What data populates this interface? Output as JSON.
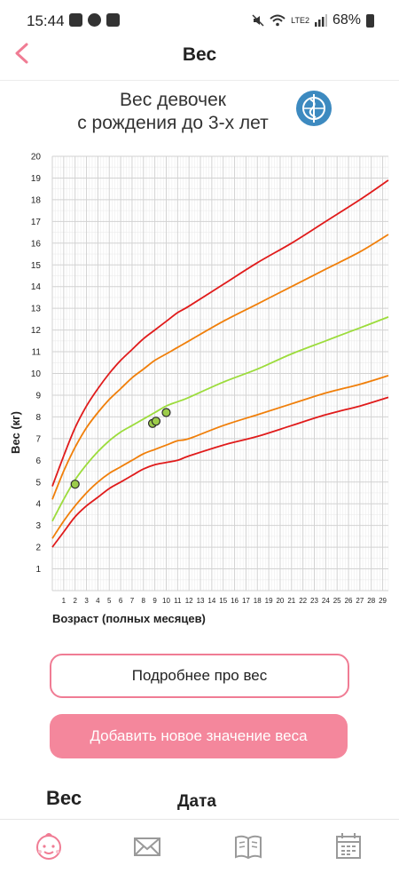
{
  "status_bar": {
    "time": "15:44",
    "network": "LTE2",
    "battery": "68%"
  },
  "header": {
    "title": "Вес"
  },
  "chart_data": {
    "type": "line",
    "title": "Вес девочек\nс рождения до 3-х лет",
    "xlabel": "Возраст (полных месяцев)",
    "ylabel": "Вес (кг)",
    "xlim": [
      0,
      29.5
    ],
    "ylim": [
      0,
      20
    ],
    "x_ticks": [
      1,
      2,
      3,
      4,
      5,
      6,
      7,
      8,
      9,
      10,
      11,
      12,
      13,
      14,
      15,
      16,
      17,
      18,
      19,
      20,
      21,
      22,
      23,
      24,
      25,
      26,
      27,
      28,
      29
    ],
    "y_ticks": [
      1,
      2,
      3,
      4,
      5,
      6,
      7,
      8,
      9,
      10,
      11,
      12,
      13,
      14,
      15,
      16,
      17,
      18,
      19,
      20
    ],
    "grid": true,
    "series": [
      {
        "color": "#e01b1b",
        "x": [
          0,
          1,
          2,
          3,
          4,
          5,
          6,
          7,
          8,
          9,
          10,
          11,
          12,
          15,
          18,
          21,
          24,
          27,
          29.5
        ],
        "values": [
          4.8,
          6.2,
          7.5,
          8.5,
          9.3,
          10.0,
          10.6,
          11.1,
          11.6,
          12.0,
          12.4,
          12.8,
          13.1,
          14.1,
          15.1,
          16.0,
          17.0,
          18.0,
          18.9
        ]
      },
      {
        "color": "#f07f0a",
        "x": [
          0,
          1,
          2,
          3,
          4,
          5,
          6,
          7,
          8,
          9,
          10,
          11,
          12,
          15,
          18,
          21,
          24,
          27,
          29.5
        ],
        "values": [
          4.2,
          5.5,
          6.6,
          7.5,
          8.2,
          8.8,
          9.3,
          9.8,
          10.2,
          10.6,
          10.9,
          11.2,
          11.5,
          12.4,
          13.2,
          14.0,
          14.8,
          15.6,
          16.4
        ]
      },
      {
        "color": "#9cdc3c",
        "x": [
          0,
          1,
          2,
          3,
          4,
          5,
          6,
          7,
          8,
          9,
          10,
          11,
          12,
          15,
          18,
          21,
          24,
          27,
          29.5
        ],
        "values": [
          3.2,
          4.2,
          5.1,
          5.8,
          6.4,
          6.9,
          7.3,
          7.6,
          7.9,
          8.2,
          8.5,
          8.7,
          8.9,
          9.6,
          10.2,
          10.9,
          11.5,
          12.1,
          12.6
        ]
      },
      {
        "color": "#f07f0a",
        "x": [
          0,
          1,
          2,
          3,
          4,
          5,
          6,
          7,
          8,
          9,
          10,
          11,
          12,
          15,
          18,
          21,
          24,
          27,
          29.5
        ],
        "values": [
          2.4,
          3.2,
          3.9,
          4.5,
          5.0,
          5.4,
          5.7,
          6.0,
          6.3,
          6.5,
          6.7,
          6.9,
          7.0,
          7.6,
          8.1,
          8.6,
          9.1,
          9.5,
          9.9
        ]
      },
      {
        "color": "#e01b1b",
        "x": [
          0,
          1,
          2,
          3,
          4,
          5,
          6,
          7,
          8,
          9,
          10,
          11,
          12,
          15,
          18,
          21,
          24,
          27,
          29.5
        ],
        "values": [
          2.0,
          2.7,
          3.4,
          3.9,
          4.3,
          4.7,
          5.0,
          5.3,
          5.6,
          5.8,
          5.9,
          6.0,
          6.2,
          6.7,
          7.1,
          7.6,
          8.1,
          8.5,
          8.9
        ]
      }
    ],
    "points": [
      {
        "x": 2,
        "y": 4.9
      },
      {
        "x": 8.8,
        "y": 7.7
      },
      {
        "x": 9.1,
        "y": 7.8
      },
      {
        "x": 10.0,
        "y": 8.2
      }
    ]
  },
  "buttons": {
    "more_label": "Подробнее про вес",
    "add_label": "Добавить новое значение веса"
  },
  "list": {
    "weight_header": "Вес",
    "date_header": "Дата"
  },
  "colors": {
    "accent": "#f07c94",
    "accent_fill": "#f4879c",
    "nav_active": "#f07c94",
    "nav_inactive": "#9a9a9a"
  }
}
